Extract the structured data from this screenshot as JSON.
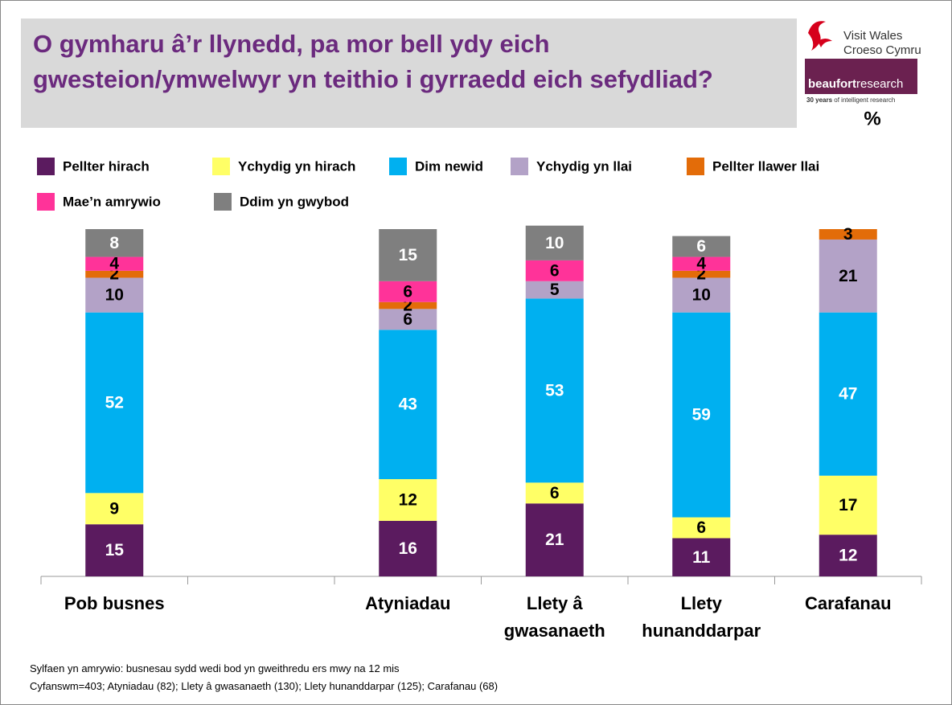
{
  "chart_data": {
    "type": "stacked_bar",
    "title": "O gymharu â’r llynedd, pa mor bell ydy eich gwesteion/ymwelwyr yn teithio i gyrraedd eich sefydliad?",
    "unit": "%",
    "logos": {
      "visit_wales": "Visit Wales",
      "croeso_cymru": "Croeso Cymru",
      "beaufort_a": "beaufort",
      "beaufort_b": "research",
      "beaufort_tagline_a": "30 years",
      "beaufort_tagline_b": "of intelligent research"
    },
    "categories": [
      "Pob busnes",
      null,
      "Atyniadau",
      "Llety â gwasanaeth",
      "Llety hunanddarpar",
      "Carafanau"
    ],
    "series": [
      {
        "name": "Pellter hirach",
        "color": "#5b1b5f",
        "values": [
          15,
          null,
          16,
          21,
          11,
          12
        ]
      },
      {
        "name": "Ychydig yn hirach",
        "color": "#ffff66",
        "values": [
          9,
          null,
          12,
          6,
          6,
          17
        ]
      },
      {
        "name": "Dim newid",
        "color": "#00b0f0",
        "values": [
          52,
          null,
          43,
          53,
          59,
          47
        ]
      },
      {
        "name": "Ychydig yn llai",
        "color": "#b3a2c7",
        "values": [
          10,
          null,
          6,
          5,
          10,
          21
        ]
      },
      {
        "name": "Pellter llawer llai",
        "color": "#e36c09",
        "values": [
          2,
          null,
          2,
          null,
          2,
          3
        ]
      },
      {
        "name": "Mae’n amrywio",
        "color": "#ff3399",
        "values": [
          4,
          null,
          6,
          6,
          4,
          null
        ]
      },
      {
        "name": "Ddim yn gwybod",
        "color": "#7f7f7f",
        "values": [
          8,
          null,
          15,
          10,
          6,
          null
        ]
      }
    ],
    "ylim": [
      0,
      100
    ],
    "footnotes": [
      "Sylfaen yn amrywio: busnesau sydd wedi bod yn gweithredu ers mwy na 12 mis",
      "Cyfanswm=403; Atyniadau (82); Llety â gwasanaeth (130); Llety hunanddarpar (125); Carafanau (68)"
    ]
  }
}
